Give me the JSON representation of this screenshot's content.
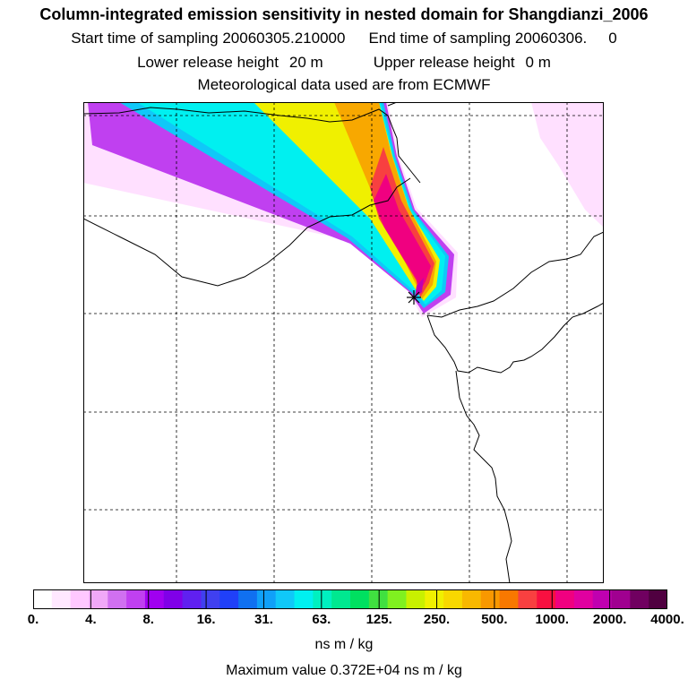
{
  "header": {
    "title": "Column-integrated emission sensitivity in nested domain for Shangdianzi_2006",
    "start_label": "Start time of sampling 20060305.210000",
    "end_label": "End time of sampling 20060306.",
    "end_value": "0",
    "lower_label": "Lower release height",
    "lower_value": "20 m",
    "upper_label": "Upper release height",
    "upper_value": "0 m",
    "met_label": "Meteorological data used are from ECMWF"
  },
  "legend": {
    "tick_labels": [
      "0.",
      "4.",
      "8.",
      "16.",
      "31.",
      "63.",
      "125.",
      "250.",
      "500.",
      "1000.",
      "2000.",
      "4000."
    ],
    "unit": "ns m / kg",
    "max_value_text": "Maximum value  0.372E+04 ns m / kg",
    "colors": [
      "#ffffff",
      "#ffe8ff",
      "#ffc8ff",
      "#f0a8f8",
      "#d070f0",
      "#c040f0",
      "#a000f0",
      "#8000e8",
      "#6020f0",
      "#4040f0",
      "#2040f8",
      "#1070f0",
      "#10a0f8",
      "#10c8f8",
      "#00f0f0",
      "#00f0c0",
      "#00e890",
      "#00e060",
      "#40e040",
      "#80f020",
      "#c8f000",
      "#f0f000",
      "#f8d800",
      "#f8b800",
      "#f89800",
      "#f87800",
      "#f84040",
      "#f81040",
      "#f00080",
      "#e000a0",
      "#c000b0",
      "#a00090",
      "#700060",
      "#500040"
    ]
  },
  "plume": {
    "levels": [
      {
        "color": "#ffe0ff"
      },
      {
        "color": "#c040f0"
      },
      {
        "color": "#10c8f8"
      },
      {
        "color": "#00f0f0"
      },
      {
        "color": "#f0f000"
      },
      {
        "color": "#f8a800"
      },
      {
        "color": "#f84040"
      },
      {
        "color": "#f00080"
      },
      {
        "color": "#c000b0"
      }
    ]
  },
  "station_marker": "star-marker"
}
